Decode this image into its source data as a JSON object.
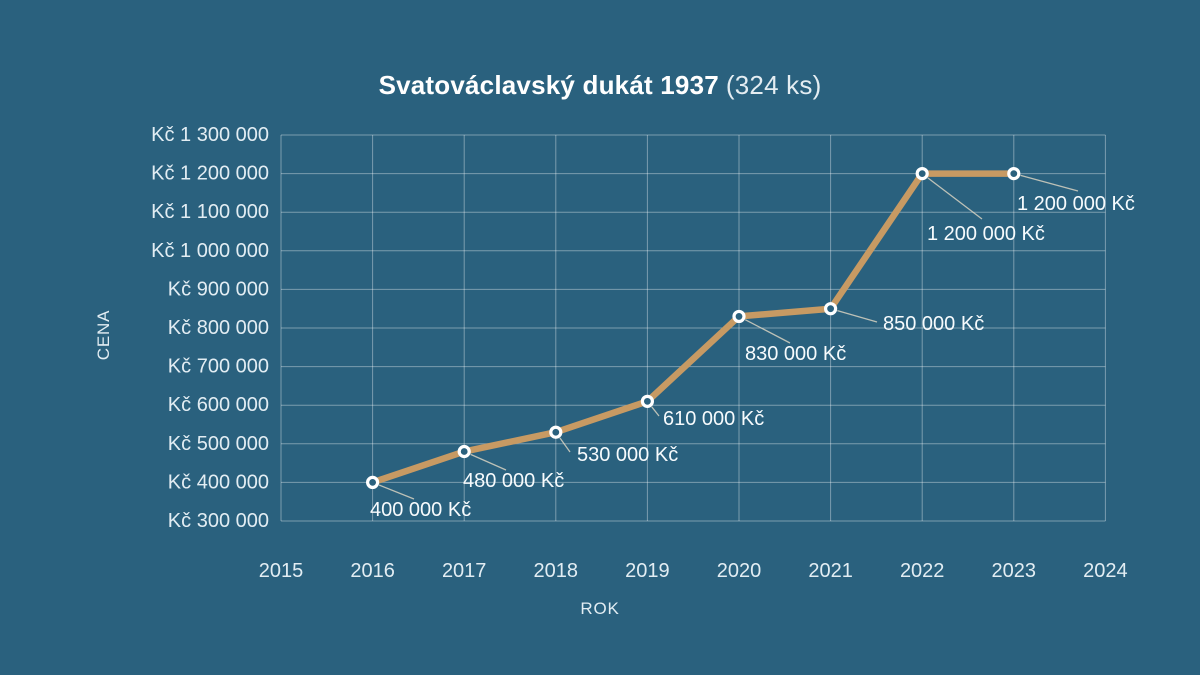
{
  "title": {
    "main": "Svatováclavský dukát 1937",
    "suffix": "(324 ks)"
  },
  "colors": {
    "background": "#2a617e",
    "line": "#c79a63",
    "grid": "rgba(255,255,255,0.38)",
    "leader": "rgba(226,218,198,0.8)",
    "marker_stroke": "#ffffff",
    "marker_fill": "#2a617e",
    "tick_text": "#e2edf3",
    "annotation_text": "#f7fbfd",
    "title_main": "#ffffff",
    "title_suffix": "#e4edf2"
  },
  "chart_data": {
    "type": "line",
    "title": "Svatováclavský dukát 1937 (324 ks)",
    "xlabel": "ROK",
    "ylabel": "CENA",
    "xlim": [
      2015,
      2024
    ],
    "ylim": [
      300000,
      1300000
    ],
    "grid": true,
    "legend": false,
    "x_ticks": [
      {
        "value": 2015,
        "label": "2015"
      },
      {
        "value": 2016,
        "label": "2016"
      },
      {
        "value": 2017,
        "label": "2017"
      },
      {
        "value": 2018,
        "label": "2018"
      },
      {
        "value": 2019,
        "label": "2019"
      },
      {
        "value": 2020,
        "label": "2020"
      },
      {
        "value": 2021,
        "label": "2021"
      },
      {
        "value": 2022,
        "label": "2022"
      },
      {
        "value": 2023,
        "label": "2023"
      },
      {
        "value": 2024,
        "label": "2024"
      }
    ],
    "y_ticks": [
      {
        "value": 300000,
        "label": "Kč 300 000"
      },
      {
        "value": 400000,
        "label": "Kč 400 000"
      },
      {
        "value": 500000,
        "label": "Kč 500 000"
      },
      {
        "value": 600000,
        "label": "Kč 600 000"
      },
      {
        "value": 700000,
        "label": "Kč 700 000"
      },
      {
        "value": 800000,
        "label": "Kč 800 000"
      },
      {
        "value": 900000,
        "label": "Kč 900 000"
      },
      {
        "value": 1000000,
        "label": "Kč 1 000 000"
      },
      {
        "value": 1100000,
        "label": "Kč 1 100 000"
      },
      {
        "value": 1200000,
        "label": "Kč 1 200 000"
      },
      {
        "value": 1300000,
        "label": "Kč 1 300 000"
      }
    ],
    "series": [
      {
        "name": "Svatováclavský dukát 1937",
        "x": [
          2016,
          2017,
          2018,
          2019,
          2020,
          2021,
          2022,
          2023
        ],
        "values": [
          400000,
          480000,
          530000,
          610000,
          830000,
          850000,
          1200000,
          1200000
        ],
        "point_labels": [
          "400 000 Kč",
          "480 000 Kč",
          "530 000 Kč",
          "610 000 Kč",
          "830 000 Kč",
          "850 000 Kč",
          "1 200 000 Kč",
          "1 200 000 Kč"
        ]
      }
    ]
  }
}
